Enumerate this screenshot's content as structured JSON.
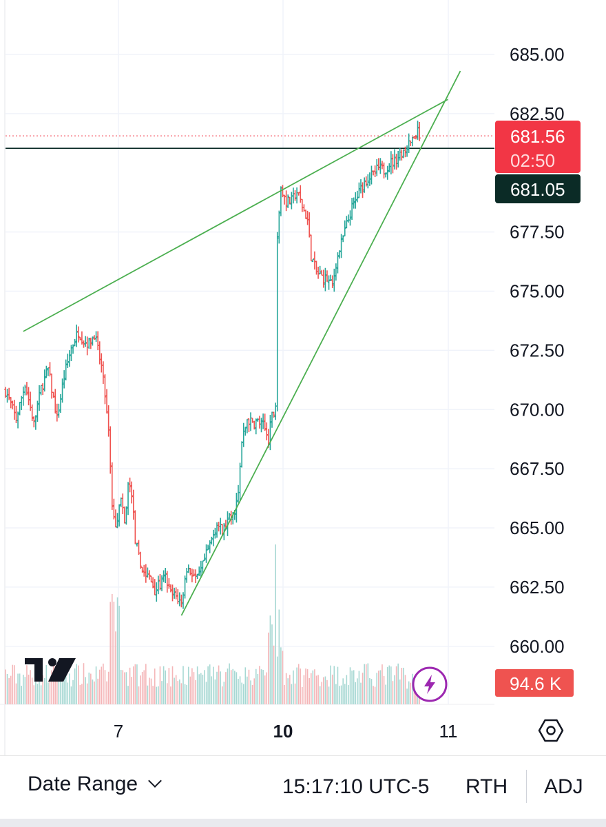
{
  "chart_data": {
    "type": "ohlc",
    "y_axis": {
      "ticks": [
        "685.00",
        "682.50",
        "677.50",
        "675.00",
        "672.50",
        "670.00",
        "667.50",
        "665.00",
        "662.50",
        "660.00"
      ],
      "range": [
        658.8,
        687.2
      ],
      "position": "right"
    },
    "x_axis": {
      "labels": [
        {
          "text": "7",
          "bold": false
        },
        {
          "text": "10",
          "bold": true
        },
        {
          "text": "11",
          "bold": false
        }
      ]
    },
    "last_price": {
      "value": "681.56",
      "countdown": "02:50",
      "color": "#f23645"
    },
    "reference_line": {
      "value": "681.05",
      "color": "#0b2b26"
    },
    "volume": {
      "label": "94.6 K",
      "color": "#ef5350"
    },
    "colors": {
      "up": "#26a69a",
      "down": "#ef5350",
      "trendline": "#4caf50"
    },
    "trendlines": [
      {
        "from": {
          "bar": 10,
          "price": 673.3
        },
        "to": {
          "bar": 249,
          "price": 683.1
        }
      },
      {
        "from": {
          "bar": 99,
          "price": 661.3
        },
        "to": {
          "bar": 256,
          "price": 684.3
        }
      }
    ],
    "price_path": [
      [
        0,
        670.8
      ],
      [
        6,
        669.6
      ],
      [
        11,
        671.1
      ],
      [
        16,
        669.4
      ],
      [
        20,
        670.9
      ],
      [
        24,
        671.7
      ],
      [
        29,
        669.6
      ],
      [
        33,
        671.4
      ],
      [
        37,
        672.6
      ],
      [
        41,
        673.3
      ],
      [
        44,
        672.9
      ],
      [
        47,
        672.8
      ],
      [
        50,
        673.2
      ],
      [
        52,
        672.5
      ],
      [
        54,
        671.8
      ],
      [
        56,
        670.6
      ],
      [
        58,
        669.0
      ],
      [
        60,
        666.0
      ],
      [
        62,
        665.2
      ],
      [
        65,
        666.2
      ],
      [
        67,
        665.1
      ],
      [
        69,
        666.8
      ],
      [
        71,
        666.5
      ],
      [
        73,
        664.5
      ],
      [
        76,
        663.4
      ],
      [
        79,
        663.0
      ],
      [
        81,
        662.9
      ],
      [
        84,
        662.4
      ],
      [
        87,
        662.6
      ],
      [
        90,
        662.9
      ],
      [
        93,
        662.2
      ],
      [
        96,
        662.1
      ],
      [
        99,
        661.8
      ],
      [
        102,
        663.3
      ],
      [
        105,
        663.1
      ],
      [
        108,
        662.8
      ],
      [
        111,
        663.4
      ],
      [
        115,
        664.3
      ],
      [
        119,
        665.2
      ],
      [
        122,
        664.8
      ],
      [
        125,
        665.3
      ],
      [
        128,
        665.5
      ],
      [
        131,
        666.4
      ],
      [
        133,
        668.6
      ],
      [
        136,
        669.6
      ],
      [
        139,
        669.4
      ],
      [
        142,
        669.5
      ],
      [
        145,
        669.3
      ],
      [
        148,
        668.8
      ],
      [
        150,
        669.7
      ],
      [
        152,
        670.2
      ],
      [
        153,
        677.5
      ],
      [
        155,
        679.2
      ],
      [
        158,
        678.8
      ],
      [
        161,
        678.8
      ],
      [
        164,
        679.2
      ],
      [
        167,
        678.6
      ],
      [
        170,
        678.0
      ],
      [
        172,
        676.5
      ],
      [
        175,
        675.8
      ],
      [
        178,
        675.6
      ],
      [
        181,
        675.5
      ],
      [
        184,
        675.2
      ],
      [
        186,
        676.2
      ],
      [
        189,
        677.0
      ],
      [
        192,
        677.8
      ],
      [
        195,
        678.5
      ],
      [
        198,
        679.0
      ],
      [
        201,
        679.5
      ],
      [
        204,
        679.8
      ],
      [
        207,
        679.9
      ],
      [
        210,
        680.2
      ],
      [
        213,
        680.1
      ],
      [
        216,
        680.4
      ],
      [
        219,
        680.5
      ],
      [
        222,
        680.8
      ],
      [
        225,
        681.0
      ],
      [
        228,
        681.3
      ],
      [
        230,
        681.5
      ],
      [
        232,
        681.7
      ],
      [
        233,
        681.6
      ]
    ]
  },
  "ui": {
    "settings_icon": "hexagon-gear-icon",
    "brand_icon": "tradingview-logo-icon",
    "lightning_icon": "lightning-bolt-icon"
  },
  "bottom_bar": {
    "date_range_label": "Date Range",
    "time": "15:17:10 UTC-5",
    "rth_label": "RTH",
    "adj_label": "ADJ"
  }
}
